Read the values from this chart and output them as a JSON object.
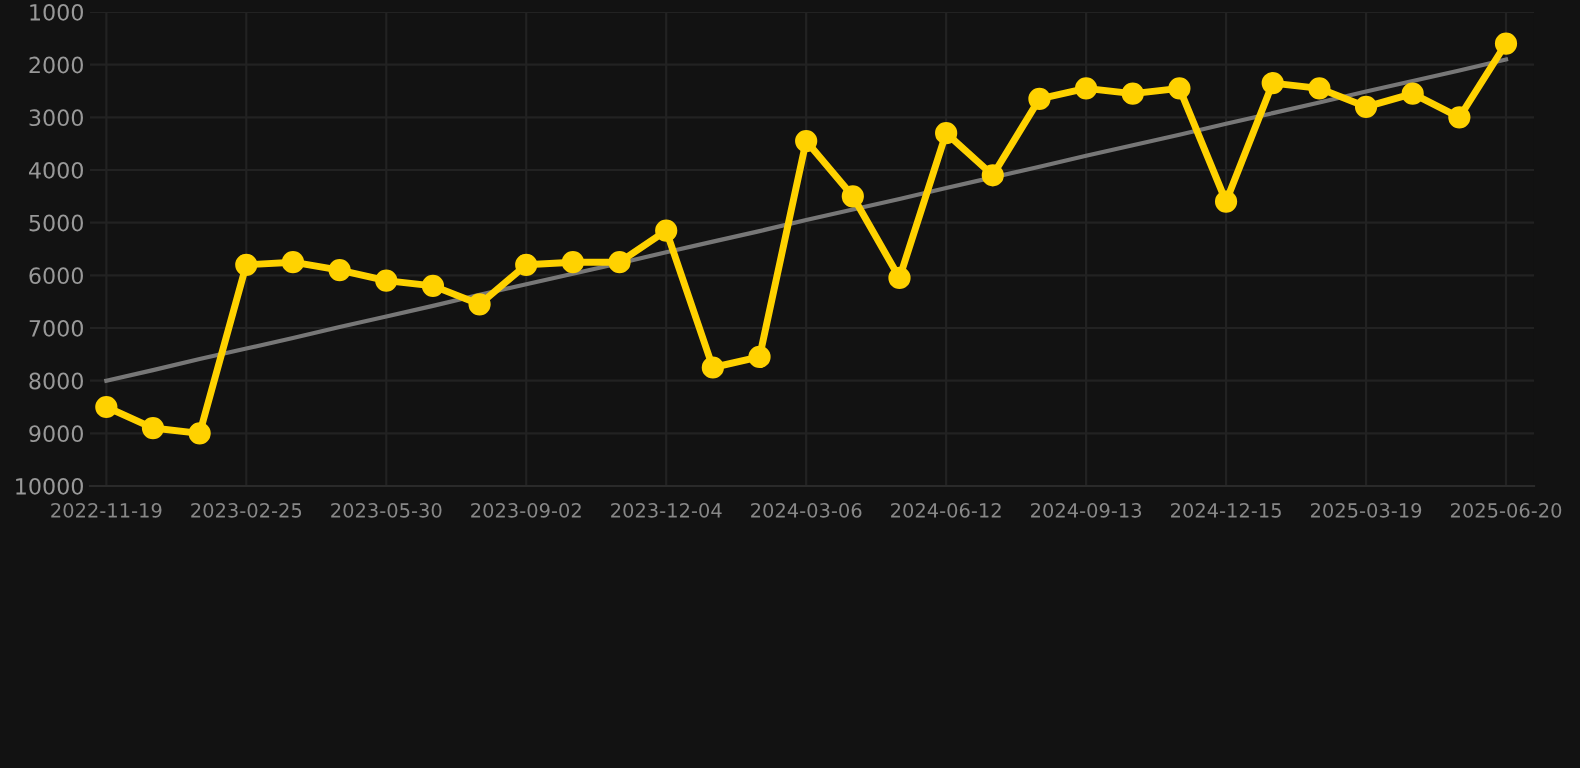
{
  "chart_data": {
    "type": "line",
    "categories": [
      "2022-11-19",
      null,
      null,
      "2023-02-25",
      null,
      null,
      "2023-05-30",
      null,
      null,
      "2023-09-02",
      null,
      null,
      "2023-12-04",
      null,
      null,
      "2024-03-06",
      null,
      null,
      "2024-06-12",
      null,
      null,
      "2024-09-13",
      null,
      null,
      "2024-12-15",
      null,
      null,
      "2025-03-19",
      null,
      null,
      "2025-06-20"
    ],
    "series": [
      {
        "color": "#ffd200",
        "marker": "circle",
        "values": [
          8500,
          8900,
          9000,
          5800,
          5750,
          5900,
          6100,
          6200,
          6550,
          5800,
          5750,
          5750,
          5150,
          7750,
          7550,
          3450,
          4500,
          6050,
          3300,
          4100,
          2650,
          2450,
          2550,
          2450,
          4600,
          2350,
          2450,
          2800,
          2550,
          3000,
          1600
        ]
      },
      {
        "color": "#777777",
        "marker": "none",
        "values": [
          8000,
          7800,
          7590,
          7390,
          7190,
          6980,
          6780,
          6580,
          6370,
          6170,
          5970,
          5770,
          5560,
          5360,
          5160,
          4950,
          4750,
          4550,
          4340,
          4140,
          3940,
          3730,
          3530,
          3330,
          3120,
          2920,
          2720,
          2510,
          2310,
          2110,
          1900
        ]
      }
    ],
    "ylim": [
      10000,
      1000
    ],
    "yticks": [
      1000,
      2000,
      3000,
      4000,
      5000,
      6000,
      7000,
      8000,
      9000,
      10000
    ],
    "grid": true,
    "legend": false
  }
}
